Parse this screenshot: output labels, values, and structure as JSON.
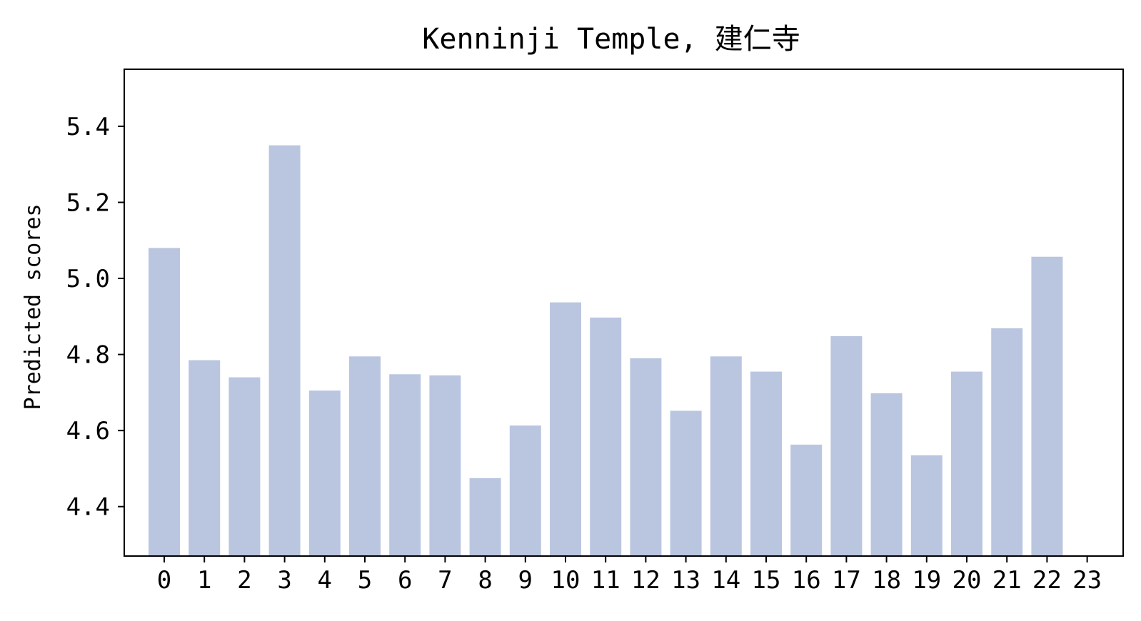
{
  "chart_data": {
    "type": "bar",
    "title": "Kenninji Temple, 建仁寺",
    "xlabel": "",
    "ylabel": "Predicted scores",
    "categories": [
      "0",
      "1",
      "2",
      "3",
      "4",
      "5",
      "6",
      "7",
      "8",
      "9",
      "10",
      "11",
      "12",
      "13",
      "14",
      "15",
      "16",
      "17",
      "18",
      "19",
      "20",
      "21",
      "22",
      "23"
    ],
    "values": [
      5.08,
      4.785,
      4.74,
      5.35,
      4.705,
      4.795,
      4.748,
      4.745,
      4.475,
      4.613,
      4.937,
      4.897,
      4.79,
      4.652,
      4.795,
      4.755,
      4.563,
      4.848,
      4.698,
      4.535,
      4.755,
      4.869,
      5.057,
      null
    ],
    "ylim": [
      4.27,
      5.55
    ],
    "yticks": [
      "4.4",
      "4.6",
      "4.8",
      "5.0",
      "5.2",
      "5.4"
    ],
    "bar_color": "#bac6e0",
    "grid": false,
    "legend": "none"
  }
}
